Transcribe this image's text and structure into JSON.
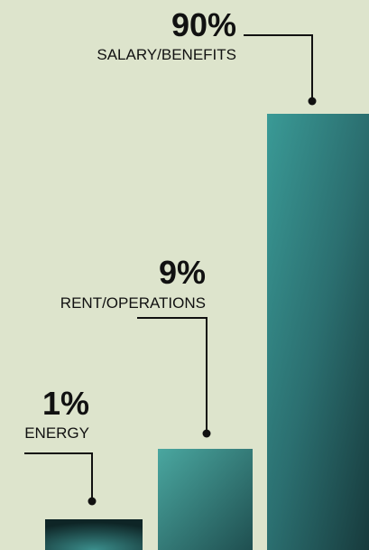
{
  "items": [
    {
      "value_label": "90%",
      "label": "SALARY/BENEFITS"
    },
    {
      "value_label": "9%",
      "label": "RENT/OPERATIONS"
    },
    {
      "value_label": "1%",
      "label": "ENERGY"
    }
  ]
}
